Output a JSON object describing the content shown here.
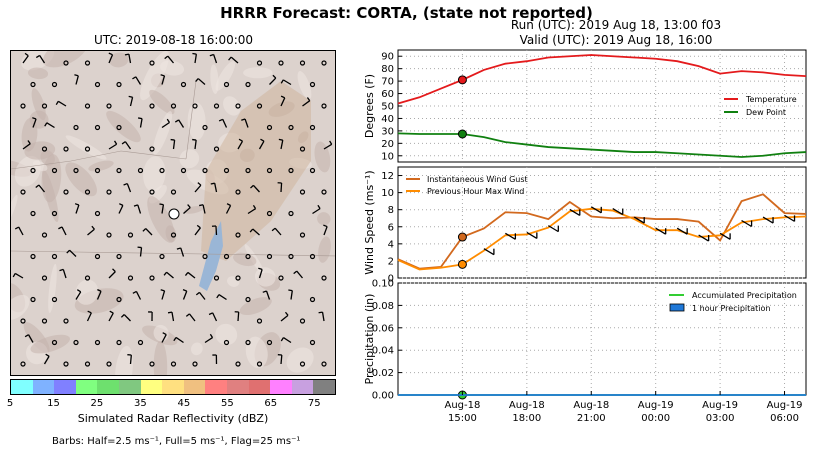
{
  "title": "HRRR Forecast: CORTA, (state not reported)",
  "map": {
    "title": "UTC: 2019-08-18 16:00:00",
    "colorbar": {
      "label": "Simulated Radar Reflectivity (dBZ)",
      "ticks": [
        "5",
        "15",
        "25",
        "35",
        "45",
        "55",
        "65",
        "75"
      ],
      "colors": [
        "#80ffff",
        "#7fb2ff",
        "#8080ff",
        "#80ff80",
        "#6ee06e",
        "#80c880",
        "#ffff80",
        "#ffe080",
        "#f0c080",
        "#ff8080",
        "#e08080",
        "#e07070",
        "#ff80ff",
        "#c8a0e0",
        "#808080"
      ]
    },
    "barb_note": "Barbs: Half=2.5 ms⁻¹, Full=5 ms⁻¹, Flag=25 ms⁻¹"
  },
  "run": {
    "line1": "Run (UTC): 2019 Aug 18, 13:00 f03",
    "line2": "Valid (UTC): 2019 Aug 18, 16:00"
  },
  "chart_data": [
    {
      "type": "line",
      "ylabel": "Degrees (F)",
      "ylim": [
        5,
        95
      ],
      "yticks": [
        10,
        20,
        30,
        40,
        50,
        60,
        70,
        80,
        90
      ],
      "grid": true,
      "legend": "right",
      "x": [
        "12:00",
        "13:00",
        "14:00",
        "15:00",
        "16:00",
        "17:00",
        "18:00",
        "19:00",
        "20:00",
        "21:00",
        "22:00",
        "23:00",
        "00:00",
        "01:00",
        "02:00",
        "03:00",
        "04:00",
        "05:00",
        "06:00",
        "07:00"
      ],
      "series": [
        {
          "name": "Temperature",
          "color": "#e41a1c",
          "values": [
            52,
            57,
            64,
            71,
            79,
            84,
            86,
            89,
            90,
            91,
            90,
            89,
            88,
            86,
            82,
            76,
            78,
            77,
            75,
            74
          ]
        },
        {
          "name": "Dew Point",
          "color": "#108010",
          "values": [
            28,
            27.5,
            27.5,
            27.5,
            25,
            21,
            19,
            17,
            16,
            15,
            14,
            13,
            13,
            12,
            11,
            10,
            9,
            10,
            12,
            13
          ]
        }
      ],
      "marker_x": "15:00"
    },
    {
      "type": "line",
      "ylabel": "Wind Speed (ms⁻¹)",
      "ylim": [
        0,
        13
      ],
      "yticks": [
        0,
        2,
        4,
        6,
        8,
        10,
        12
      ],
      "grid": true,
      "legend": "top-left",
      "x": [
        "12:00",
        "13:00",
        "14:00",
        "15:00",
        "16:00",
        "17:00",
        "18:00",
        "19:00",
        "20:00",
        "21:00",
        "22:00",
        "23:00",
        "00:00",
        "01:00",
        "02:00",
        "03:00",
        "04:00",
        "05:00",
        "06:00",
        "07:00"
      ],
      "series": [
        {
          "name": "Instantaneous Wind Gust",
          "color": "#d2691e",
          "values": [
            2.2,
            1.1,
            1.3,
            4.8,
            5.8,
            7.7,
            7.6,
            6.9,
            8.9,
            7.2,
            7.0,
            7.1,
            6.9,
            6.9,
            6.6,
            4.4,
            9.0,
            9.8,
            7.6,
            7.5
          ]
        },
        {
          "name": "Previous Hour Max Wind",
          "color": "#ff8c00",
          "values": [
            2.1,
            1.0,
            1.2,
            1.6,
            3.2,
            5.0,
            5.1,
            5.9,
            7.8,
            8.1,
            7.9,
            6.9,
            5.6,
            5.6,
            4.8,
            5.0,
            6.5,
            6.9,
            7.1,
            7.2
          ]
        }
      ],
      "marker_x": "15:00"
    },
    {
      "type": "line",
      "ylabel": "Precipitation (in)",
      "ylim": [
        0,
        0.1
      ],
      "yticks": [
        "0.00",
        "0.02",
        "0.04",
        "0.06",
        "0.08",
        "0.10"
      ],
      "grid": true,
      "legend": "top-right",
      "x_tick_labels": [
        [
          "Aug-18",
          "15:00"
        ],
        [
          "Aug-18",
          "18:00"
        ],
        [
          "Aug-18",
          "21:00"
        ],
        [
          "Aug-19",
          "00:00"
        ],
        [
          "Aug-19",
          "03:00"
        ],
        [
          "Aug-19",
          "06:00"
        ]
      ],
      "series": [
        {
          "name": "Accumulated Precipitation",
          "color": "#32cd32",
          "values": [
            0,
            0,
            0,
            0,
            0,
            0,
            0,
            0,
            0,
            0,
            0,
            0,
            0,
            0,
            0,
            0,
            0,
            0,
            0,
            0
          ]
        },
        {
          "name": "1 hour Precipitation",
          "color": "#1f78d8",
          "values": [
            0,
            0,
            0,
            0,
            0,
            0,
            0,
            0,
            0,
            0,
            0,
            0,
            0,
            0,
            0,
            0,
            0,
            0,
            0,
            0
          ]
        }
      ],
      "marker_x": "15:00"
    }
  ]
}
